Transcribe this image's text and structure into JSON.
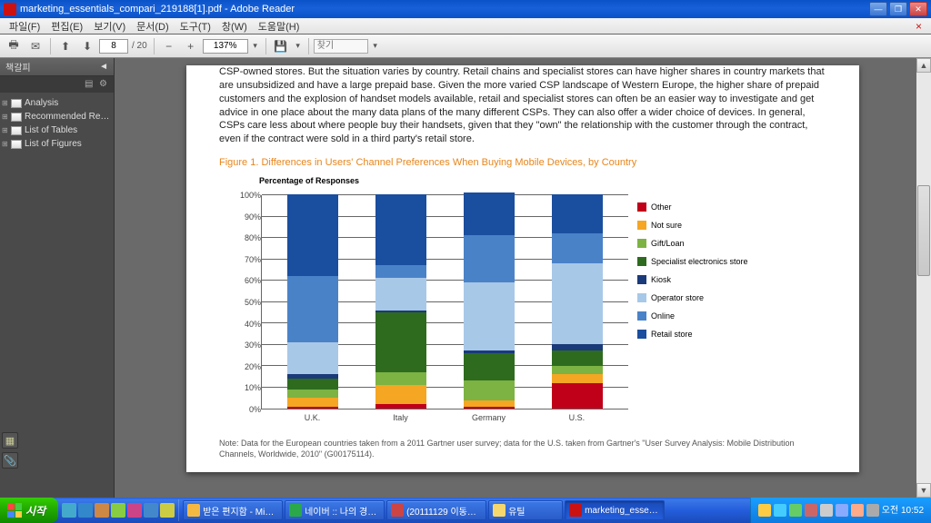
{
  "window": {
    "title": "marketing_essentials_compari_219188[1].pdf - Adobe Reader",
    "menu": [
      "파일(F)",
      "편집(E)",
      "보기(V)",
      "문서(D)",
      "도구(T)",
      "창(W)",
      "도움말(H)"
    ],
    "page_current": "8",
    "page_total": "/ 20",
    "zoom": "137%",
    "find_placeholder": "찾기"
  },
  "sidebar": {
    "title": "책갈피",
    "items": [
      {
        "label": "Analysis"
      },
      {
        "label": "Recommended Reading"
      },
      {
        "label": "List of Tables"
      },
      {
        "label": "List of Figures"
      }
    ]
  },
  "document": {
    "body_text": "CSP-owned stores. But the situation varies by country. Retail chains and specialist stores can have higher shares in country markets that are unsubsidized and have a large prepaid base. Given the more varied CSP landscape of Western Europe, the higher share of prepaid customers and the explosion of handset models available, retail and specialist stores can often be an easier way to investigate and get advice in one place about the many data plans of the many different CSPs. They can also offer a wider choice of devices. In general, CSPs care less about where people buy their handsets, given that they \"own\" the relationship with the customer through the contract, even if the contract were sold in a third party's retail store.",
    "figure_title": "Figure 1. Differences in Users' Channel Preferences When Buying Mobile Devices, by Country",
    "note": "Note: Data for the European countries taken from a 2011 Gartner user survey; data for the U.S. taken from Gartner's \"User Survey Analysis: Mobile Distribution Channels, Worldwide, 2010\" (G00175114)."
  },
  "chart": {
    "y_title": "Percentage of Responses",
    "y_ticks": [
      "0%",
      "10%",
      "20%",
      "30%",
      "40%",
      "50%",
      "60%",
      "70%",
      "80%",
      "90%",
      "100%"
    ],
    "categories": [
      "U.K.",
      "Italy",
      "Germany",
      "U.S."
    ],
    "series": [
      {
        "name": "Other",
        "color": "#c00018"
      },
      {
        "name": "Not sure",
        "color": "#f5a623"
      },
      {
        "name": "Gift/Loan",
        "color": "#7cb342"
      },
      {
        "name": "Specialist electronics store",
        "color": "#2e6b1f"
      },
      {
        "name": "Kiosk",
        "color": "#1a3a7a"
      },
      {
        "name": "Operator store",
        "color": "#a8c8e8"
      },
      {
        "name": "Online",
        "color": "#4a82c8"
      },
      {
        "name": "Retail store",
        "color": "#1a4e9e"
      }
    ],
    "data": [
      [
        1,
        4,
        4,
        5,
        2,
        15,
        31,
        38
      ],
      [
        2,
        9,
        6,
        28,
        1,
        15,
        6,
        33
      ],
      [
        1,
        3,
        9,
        13,
        1,
        32,
        22,
        20
      ],
      [
        12,
        4,
        4,
        7,
        3,
        38,
        14,
        18
      ]
    ],
    "bar_positions_pct": [
      14,
      38,
      62,
      86
    ]
  },
  "taskbar": {
    "start": "시작",
    "items": [
      {
        "label": "받은 편지함 - Micr...",
        "icon_color": "#f5b942"
      },
      {
        "label": "네이버 :: 나의 경쟁...",
        "icon_color": "#2aa84a"
      },
      {
        "label": "(20111129 이동통...",
        "icon_color": "#c44"
      },
      {
        "label": "유틸",
        "icon_color": "#f5d76e"
      },
      {
        "label": "marketing_essenti...",
        "icon_color": "#c11",
        "active": true
      }
    ],
    "clock_top": "오전 10:52",
    "clock_label": ""
  }
}
